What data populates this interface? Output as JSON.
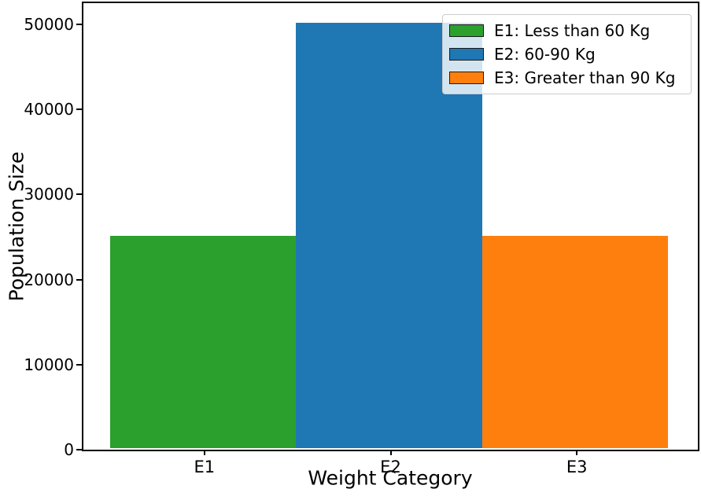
{
  "chart_data": {
    "type": "bar",
    "title": "",
    "xlabel": "Weight Category",
    "ylabel": "Population Size",
    "categories": [
      "E1",
      "E2",
      "E3"
    ],
    "values": [
      25000,
      50000,
      25000
    ],
    "bar_colors": [
      "#2ca02c",
      "#1f77b4",
      "#ff7f0e"
    ],
    "bar_width": 1.0,
    "xlim": [
      -0.65,
      2.65
    ],
    "ylim": [
      0,
      52500
    ],
    "yticks": [
      0,
      10000,
      20000,
      30000,
      40000,
      50000
    ],
    "grid": false,
    "legend_position": "upper-right",
    "legend": [
      {
        "label": "E1: Less than 60 Kg",
        "color": "#2ca02c"
      },
      {
        "label": "E2: 60-90 Kg",
        "color": "#1f77b4"
      },
      {
        "label": "E3: Greater than 90 Kg",
        "color": "#ff7f0e"
      }
    ],
    "axis_color": "#000000",
    "background": "#ffffff"
  }
}
